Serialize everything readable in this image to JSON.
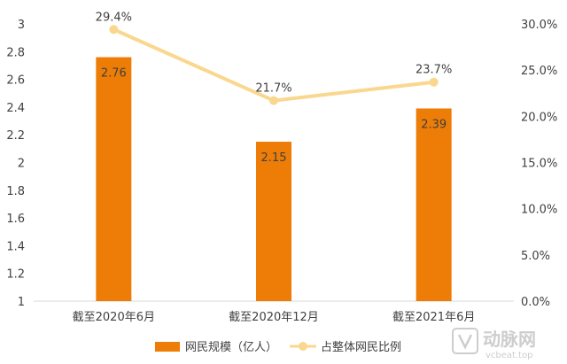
{
  "chart_data": {
    "type": "bar",
    "categories": [
      "截至2020年6月",
      "截至2020年12月",
      "截至2021年6月"
    ],
    "bar_series": {
      "name": "网民规模（亿人）",
      "values": [
        2.76,
        2.15,
        2.39
      ],
      "labels": [
        "2.76",
        "2.15",
        "2.39"
      ],
      "color": "#ED7D06"
    },
    "line_series": {
      "name": "占整体网民比例",
      "values": [
        29.4,
        21.7,
        23.7
      ],
      "labels": [
        "29.4%",
        "21.7%",
        "23.7%"
      ],
      "color": "#FAD78E"
    },
    "ylim_left": [
      1,
      3
    ],
    "left_ticks": [
      "1",
      "1.2",
      "1.4",
      "1.6",
      "1.8",
      "2",
      "2.2",
      "2.4",
      "2.6",
      "2.8",
      "3"
    ],
    "ylim_right": [
      0,
      30
    ],
    "right_ticks": [
      "0.0%",
      "5.0%",
      "10.0%",
      "15.0%",
      "20.0%",
      "25.0%",
      "30.0%"
    ],
    "grid": false,
    "legend_position": "bottom"
  },
  "watermark": {
    "text_cn": "动脉网",
    "text_en": "vcbeat.top"
  }
}
